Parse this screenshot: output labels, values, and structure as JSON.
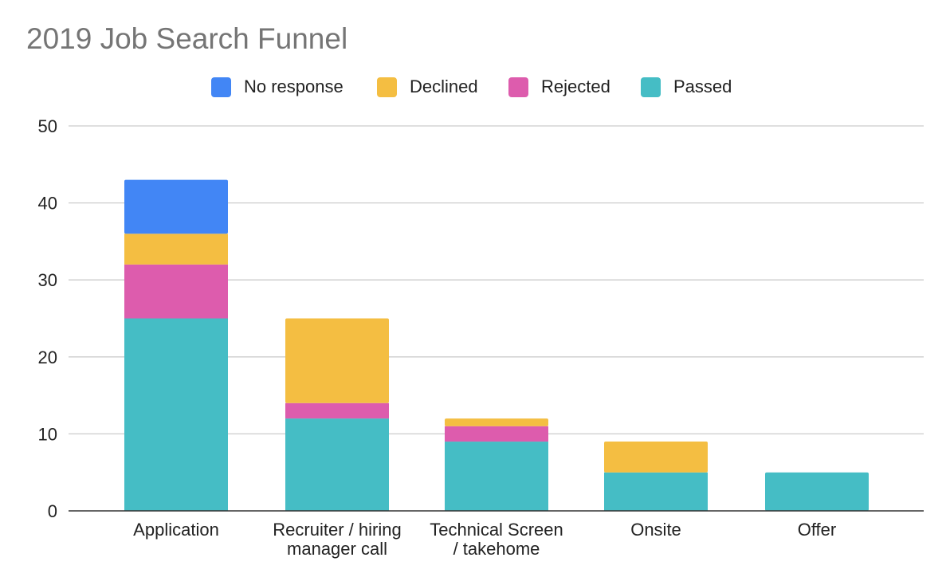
{
  "chart_data": {
    "type": "bar",
    "stacked": true,
    "title": "2019 Job Search Funnel",
    "xlabel": "",
    "ylabel": "",
    "categories": [
      "Application",
      "Recruiter / hiring manager call",
      "Technical Screen / takehome",
      "Onsite",
      "Offer"
    ],
    "category_lines": [
      [
        "Application"
      ],
      [
        "Recruiter / hiring",
        "manager call"
      ],
      [
        "Technical Screen",
        "/ takehome"
      ],
      [
        "Onsite"
      ],
      [
        "Offer"
      ]
    ],
    "series": [
      {
        "name": "Passed",
        "color": "#45BDC5",
        "values": [
          25,
          12,
          9,
          5,
          5
        ]
      },
      {
        "name": "Rejected",
        "color": "#DD5CAD",
        "values": [
          7,
          2,
          2,
          0,
          0
        ]
      },
      {
        "name": "Declined",
        "color": "#F4BE42",
        "values": [
          4,
          11,
          1,
          4,
          0
        ]
      },
      {
        "name": "No response",
        "color": "#4286F5",
        "values": [
          7,
          0,
          0,
          0,
          0
        ]
      }
    ],
    "legend_order": [
      "No response",
      "Declined",
      "Rejected",
      "Passed"
    ],
    "ylim": [
      0,
      50
    ],
    "yticks": [
      0,
      10,
      20,
      30,
      40,
      50
    ],
    "grid": true,
    "legend_position": "top"
  }
}
